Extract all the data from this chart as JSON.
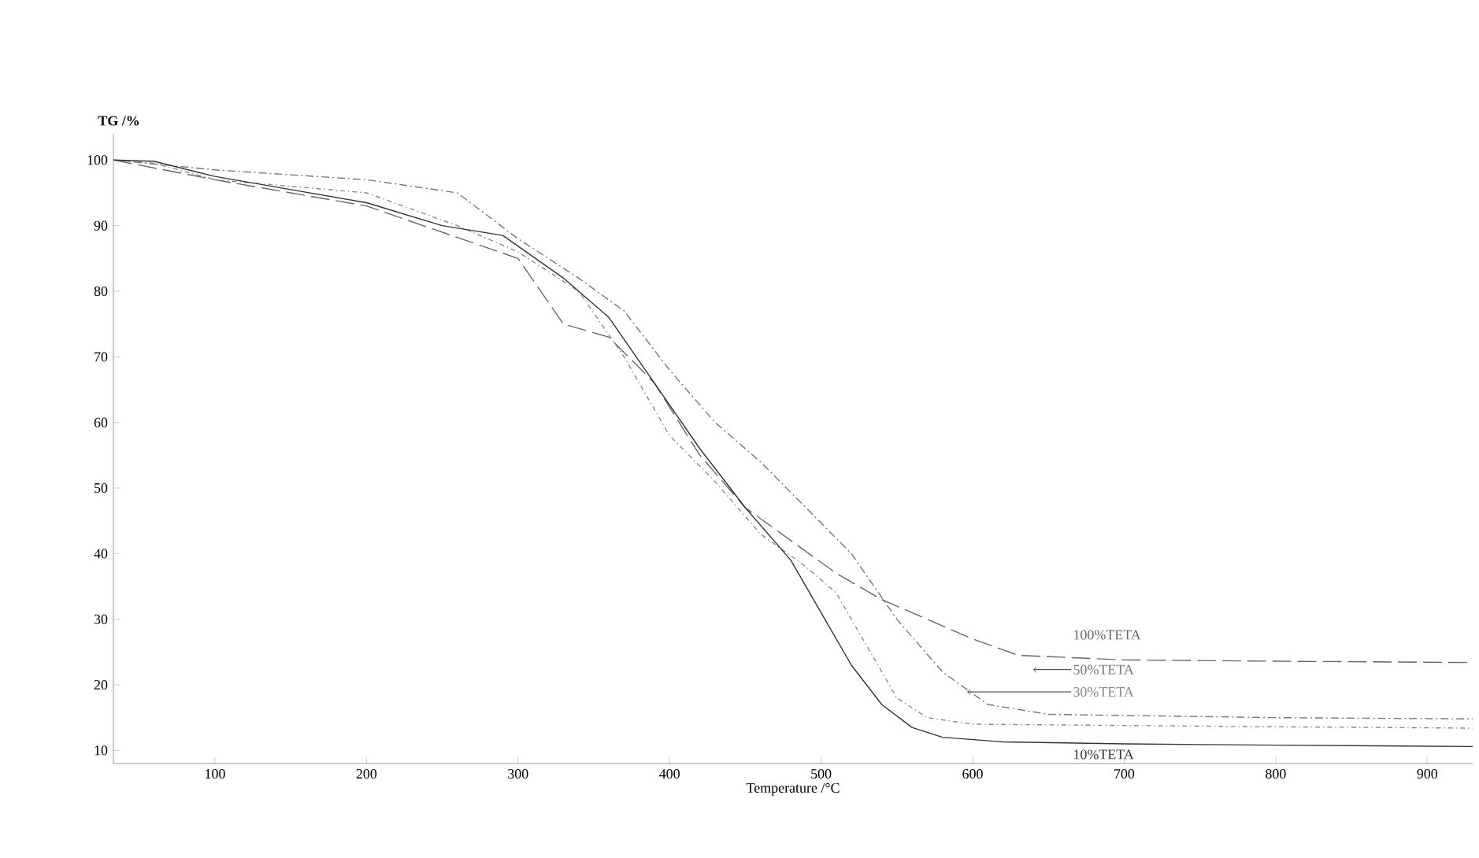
{
  "chart_data": {
    "type": "line",
    "xlabel": "Temperature /°C",
    "ylabel": "TG /%",
    "xlim": [
      33,
      930
    ],
    "ylim": [
      8,
      104
    ],
    "xticks": [
      100,
      200,
      300,
      400,
      500,
      600,
      700,
      800,
      900
    ],
    "yticks": [
      10,
      20,
      30,
      40,
      50,
      60,
      70,
      80,
      90,
      100
    ],
    "grid": false,
    "legend": false,
    "marker": "none",
    "series": [
      {
        "name": "100%TETA",
        "color": "#666666",
        "line_style": "dashed",
        "x": [
          33,
          100,
          200,
          300,
          330,
          360,
          390,
          420,
          450,
          480,
          510,
          540,
          570,
          600,
          630,
          700,
          800,
          930
        ],
        "values": [
          100,
          97,
          93,
          85,
          75,
          73,
          66,
          55,
          47,
          42,
          37,
          33,
          30,
          27,
          24.5,
          23.8,
          23.6,
          23.4
        ]
      },
      {
        "name": "50%TETA",
        "color": "#777777",
        "line_style": "dotted",
        "x": [
          33,
          100,
          200,
          260,
          300,
          340,
          370,
          400,
          430,
          460,
          490,
          520,
          550,
          580,
          610,
          650,
          800,
          930
        ],
        "values": [
          100,
          98.5,
          97,
          95,
          88,
          82,
          77,
          68,
          60,
          54,
          47,
          40,
          30,
          22,
          17,
          15.5,
          15,
          14.8
        ]
      },
      {
        "name": "30%TETA",
        "color": "#888888",
        "line_style": "dashdotted",
        "x": [
          33,
          60,
          100,
          200,
          260,
          300,
          340,
          370,
          400,
          430,
          460,
          490,
          510,
          530,
          550,
          570,
          600,
          700,
          800,
          930
        ],
        "values": [
          100,
          99.5,
          97,
          95,
          90,
          86,
          80,
          70,
          58,
          51,
          43,
          38,
          34,
          26,
          18,
          15,
          14,
          13.8,
          13.6,
          13.4
        ]
      },
      {
        "name": "10%TETA",
        "color": "#333333",
        "line_style": "solid",
        "x": [
          33,
          60,
          100,
          150,
          200,
          250,
          290,
          330,
          360,
          390,
          420,
          450,
          480,
          500,
          520,
          540,
          560,
          580,
          620,
          700,
          800,
          930
        ],
        "values": [
          100,
          99.8,
          97.5,
          95.5,
          93.5,
          90,
          88.5,
          82,
          76,
          66,
          56,
          47,
          39,
          31,
          23,
          17,
          13.5,
          12,
          11.3,
          11,
          10.8,
          10.6
        ]
      }
    ]
  }
}
